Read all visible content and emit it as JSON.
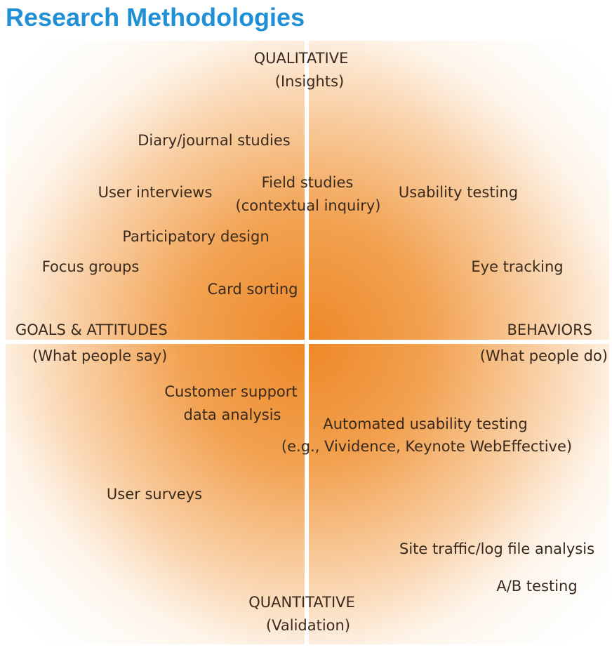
{
  "title": "Research Methodologies",
  "axes": {
    "top": {
      "label": "QUALITATIVE",
      "sub": "(Insights)"
    },
    "bottom": {
      "label": "QUANTITATIVE",
      "sub": "(Validation)"
    },
    "left": {
      "label": "GOALS & ATTITUDES",
      "sub": "(What people say)"
    },
    "right": {
      "label": "BEHAVIORS",
      "sub": "(What people do)"
    }
  },
  "methods": {
    "diary": "Diary/journal studies",
    "interviews": "User interviews",
    "field_1": "Field studies",
    "field_2": "(contextual inquiry)",
    "usability": "Usability testing",
    "participatory": "Participatory design",
    "focus": "Focus groups",
    "eye": "Eye tracking",
    "card": "Card sorting",
    "support_1": "Customer support",
    "support_2": "data analysis",
    "automated_1": "Automated usability testing",
    "automated_2": "(e.g., Vividence, Keynote WebEffective)",
    "surveys": "User surveys",
    "traffic": "Site traffic/log file analysis",
    "ab": "A/B testing"
  },
  "colors": {
    "title": "#1f8fd6",
    "gradient_center": "#ee8828",
    "text": "#3a2a1e"
  }
}
